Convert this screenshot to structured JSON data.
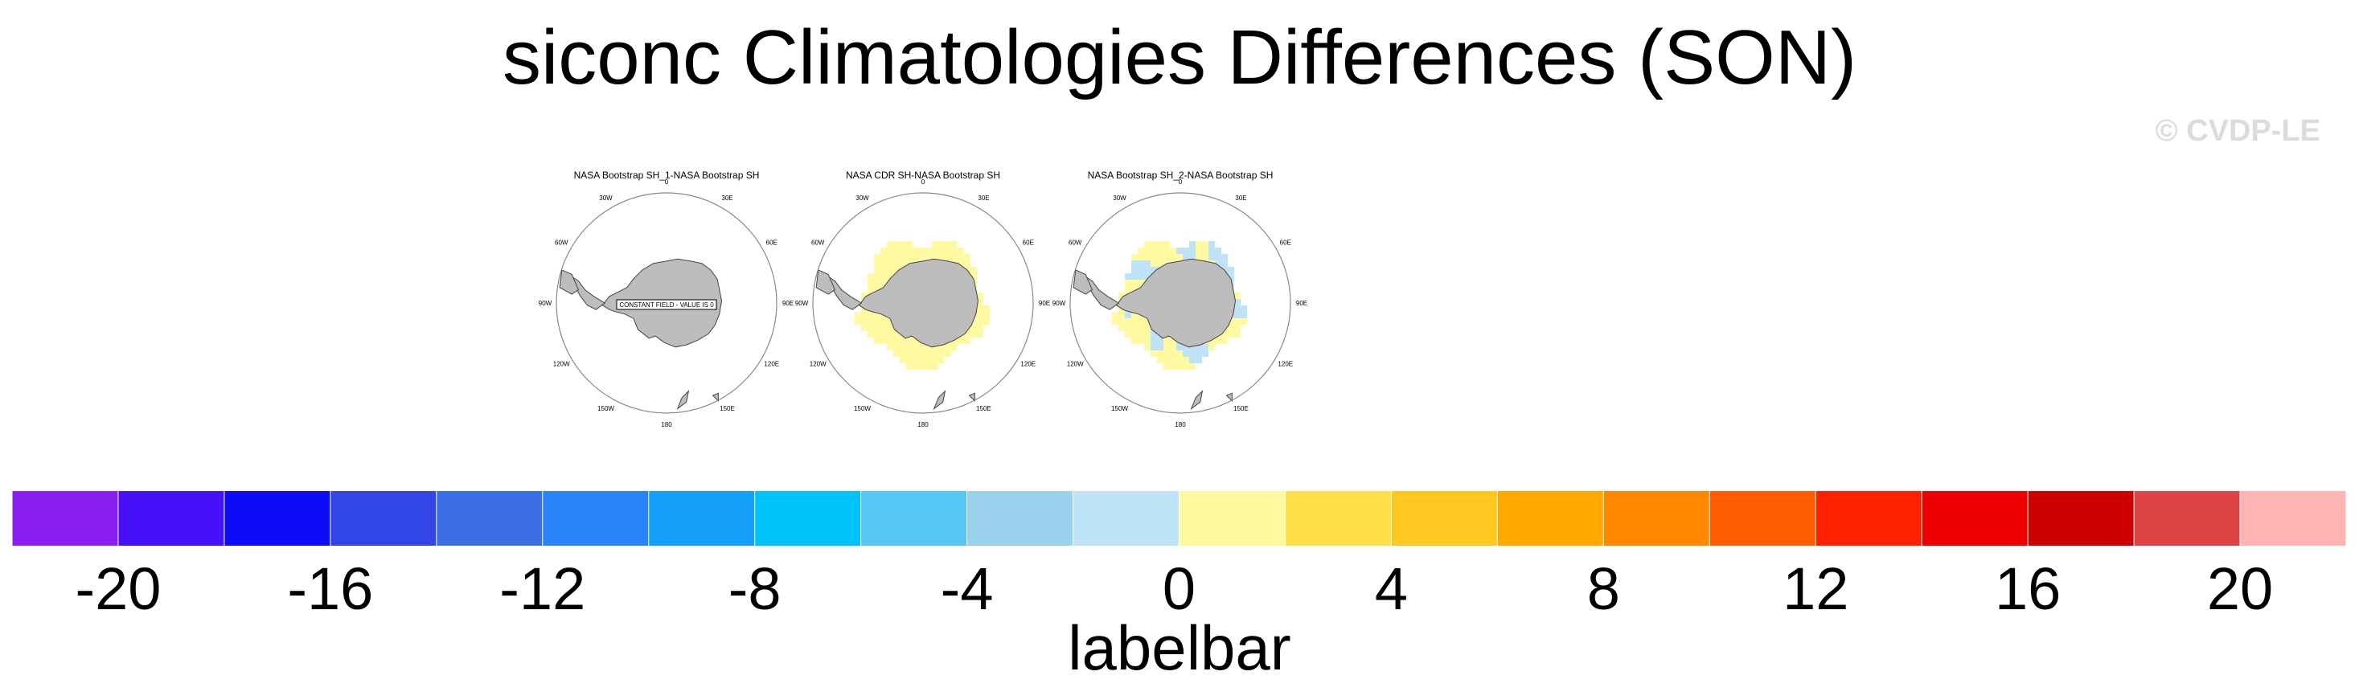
{
  "chart_data": {
    "type": "heatmap",
    "title": "siconc Climatologies Differences (SON)",
    "watermark": "© CVDP-LE",
    "projection": "south-polar-stereographic",
    "panels": [
      {
        "title": "NASA Bootstrap SH_1-NASA Bootstrap SH",
        "annotation": "CONSTANT FIELD - VALUE IS 0",
        "field_category": "constant",
        "longitude_labels": [
          "0",
          "30E",
          "60E",
          "90E",
          "120E",
          "150E",
          "180",
          "150W",
          "120W",
          "90W",
          "60W",
          "30W"
        ]
      },
      {
        "title": "NASA CDR SH-NASA Bootstrap SH",
        "field_category": "0 to 2",
        "longitude_labels": [
          "0",
          "30E",
          "60E",
          "90E",
          "120E",
          "150E",
          "180",
          "150W",
          "120W",
          "90W",
          "60W",
          "30W"
        ]
      },
      {
        "title": "NASA Bootstrap SH_2-NASA Bootstrap SH",
        "field_category": "mixed -2 to 2",
        "longitude_labels": [
          "0",
          "30E",
          "60E",
          "90E",
          "120E",
          "150E",
          "180",
          "150W",
          "120W",
          "90W",
          "60W",
          "30W"
        ]
      }
    ],
    "colorbar": {
      "title": "labelbar",
      "boundaries": [
        -22,
        -20,
        -18,
        -16,
        -14,
        -12,
        -10,
        -8,
        -6,
        -4,
        -2,
        0,
        2,
        4,
        6,
        8,
        10,
        12,
        14,
        16,
        18,
        20,
        22
      ],
      "tick_labels": [
        "-20",
        "-16",
        "-12",
        "-8",
        "-4",
        "0",
        "4",
        "8",
        "12",
        "16",
        "20"
      ],
      "colors": [
        "#8a1ef0",
        "#4610f8",
        "#0c0cf8",
        "#3246e6",
        "#3c6ee6",
        "#2a84f8",
        "#14a0fa",
        "#00c2fa",
        "#56c6f2",
        "#9ad2ee",
        "#bee2f6",
        "#fff9a0",
        "#ffe046",
        "#ffc820",
        "#ffa800",
        "#ff8800",
        "#ff5c00",
        "#ff2000",
        "#ee0000",
        "#cc0000",
        "#dd4444",
        "#ffb4b4"
      ]
    }
  }
}
